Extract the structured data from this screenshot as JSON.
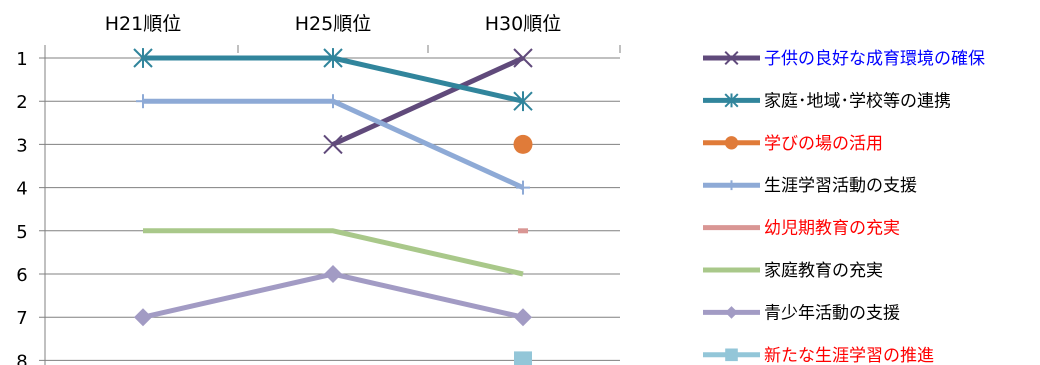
{
  "chart_data": {
    "type": "line",
    "categories": [
      "H21順位",
      "H25順位",
      "H30順位"
    ],
    "y_ticks": [
      1,
      2,
      3,
      4,
      5,
      6,
      7,
      8
    ],
    "ylim": [
      1,
      8
    ],
    "y_reversed": true,
    "grid": true,
    "legend_position": "right",
    "series": [
      {
        "name": "子供の良好な成育環境の確保",
        "values": [
          null,
          3,
          1
        ],
        "color": "#604a7b",
        "marker": "x",
        "label_color": "#0000ff"
      },
      {
        "name": "家庭･地域･学校等の連携",
        "values": [
          1,
          1,
          2
        ],
        "color": "#31859c",
        "marker": "star",
        "label_color": "#000000"
      },
      {
        "name": "学びの場の活用",
        "values": [
          null,
          null,
          3
        ],
        "color": "#e07b39",
        "marker": "circle",
        "label_color": "#ff0000"
      },
      {
        "name": "生涯学習活動の支援",
        "values": [
          2,
          2,
          4
        ],
        "color": "#8eaad6",
        "marker": "plus",
        "label_color": "#000000"
      },
      {
        "name": "幼児期教育の充実",
        "values": [
          null,
          null,
          5
        ],
        "color": "#d99694",
        "marker": "dash",
        "label_color": "#ff0000"
      },
      {
        "name": "家庭教育の充実",
        "values": [
          5,
          5,
          6
        ],
        "color": "#a9c88a",
        "marker": "none",
        "label_color": "#000000"
      },
      {
        "name": "青少年活動の支援",
        "values": [
          7,
          6,
          7
        ],
        "color": "#a29bc4",
        "marker": "diamond",
        "label_color": "#000000"
      },
      {
        "name": "新たな生涯学習の推進",
        "values": [
          null,
          null,
          8
        ],
        "color": "#93c6d8",
        "marker": "square",
        "label_color": "#ff0000"
      }
    ]
  }
}
